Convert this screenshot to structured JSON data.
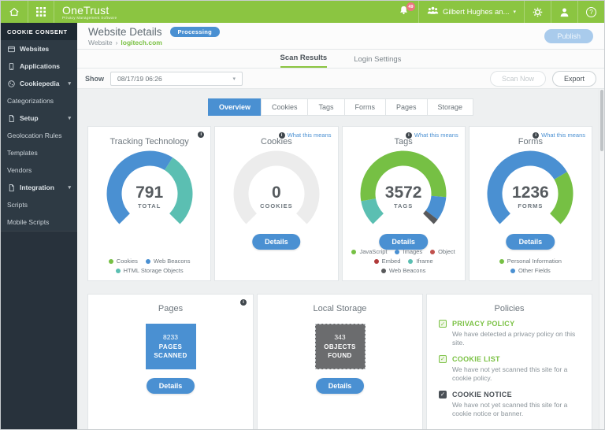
{
  "colors": {
    "brand_green": "#8bc541",
    "accent_blue": "#4a90d2",
    "teal": "#5bbfb2",
    "chart_green": "#76c044",
    "dark_gray": "#58595b",
    "empty_gray": "#ececec"
  },
  "topbar": {
    "brand": "OneTrust",
    "tagline": "Privacy Management Software",
    "notification_count": "49",
    "user_name": "Gilbert Hughes an..."
  },
  "sidebar": {
    "section_title": "COOKIE CONSENT",
    "items": [
      {
        "label": "Websites",
        "type": "parent"
      },
      {
        "label": "Applications",
        "type": "parent"
      },
      {
        "label": "Cookiepedia",
        "type": "parent",
        "expandable": true
      },
      {
        "label": "Categorizations",
        "type": "sub"
      },
      {
        "label": "Setup",
        "type": "parent",
        "expandable": true
      },
      {
        "label": "Geolocation Rules",
        "type": "sub"
      },
      {
        "label": "Templates",
        "type": "sub"
      },
      {
        "label": "Vendors",
        "type": "sub"
      },
      {
        "label": "Integration",
        "type": "parent",
        "expandable": true
      },
      {
        "label": "Scripts",
        "type": "sub"
      },
      {
        "label": "Mobile Scripts",
        "type": "sub"
      }
    ]
  },
  "header": {
    "title": "Website Details",
    "status_badge": "Processing",
    "breadcrumb_parent": "Website",
    "breadcrumb_current": "logitech.com",
    "publish_label": "Publish"
  },
  "tabs": {
    "scan_results": "Scan Results",
    "login_settings": "Login Settings"
  },
  "toolbar": {
    "show_label": "Show",
    "scan_date": "08/17/19 06:26",
    "scan_now_label": "Scan Now",
    "export_label": "Export"
  },
  "subtabs": {
    "items": [
      "Overview",
      "Cookies",
      "Tags",
      "Forms",
      "Pages",
      "Storage"
    ],
    "active": "Overview"
  },
  "cards": {
    "gauges": [
      {
        "title": "Tracking Technology",
        "value": "791",
        "unit": "TOTAL",
        "segments": [
          {
            "name": "Web Beacons",
            "color": "#4a90d2",
            "fraction": 0.62
          },
          {
            "name": "HTML Storage Objects",
            "color": "#5bbfb2",
            "fraction": 0.38
          }
        ],
        "legend": [
          {
            "label": "Cookies",
            "color": "#76c044"
          },
          {
            "label": "Web Beacons",
            "color": "#4a90d2"
          },
          {
            "label": "HTML Storage Objects",
            "color": "#5bbfb2"
          }
        ]
      },
      {
        "title": "Cookies",
        "info_link": "What this means",
        "value": "0",
        "unit": "COOKIES",
        "details_label": "Details",
        "segments": [
          {
            "name": "none",
            "color": "#ececec",
            "fraction": 1
          }
        ],
        "legend": []
      },
      {
        "title": "Tags",
        "info_link": "What this means",
        "value": "3572",
        "unit": "TAGS",
        "details_label": "Details",
        "segments": [
          {
            "name": "Iframe",
            "color": "#5bbfb2",
            "fraction": 0.13
          },
          {
            "name": "JavaScript",
            "color": "#76c044",
            "fraction": 0.72
          },
          {
            "name": "Images",
            "color": "#4a90d2",
            "fraction": 0.12
          },
          {
            "name": "Web Beacons",
            "color": "#58595b",
            "fraction": 0.03
          }
        ],
        "legend": [
          {
            "label": "JavaScript",
            "color": "#76c044"
          },
          {
            "label": "Images",
            "color": "#4a90d2"
          },
          {
            "label": "Object",
            "color": "#c0504d"
          },
          {
            "label": "Embed",
            "color": "#b03a3a"
          },
          {
            "label": "Iframe",
            "color": "#5bbfb2"
          },
          {
            "label": "Web Beacons",
            "color": "#58595b"
          }
        ]
      },
      {
        "title": "Forms",
        "info_link": "What this means",
        "value": "1236",
        "unit": "FORMS",
        "details_label": "Details",
        "segments": [
          {
            "name": "Other Fields",
            "color": "#4a90d2",
            "fraction": 0.72
          },
          {
            "name": "Personal Information",
            "color": "#76c044",
            "fraction": 0.28
          }
        ],
        "legend": [
          {
            "label": "Personal Information",
            "color": "#76c044"
          },
          {
            "label": "Other Fields",
            "color": "#4a90d2"
          }
        ]
      }
    ],
    "pages": {
      "title": "Pages",
      "line1": "8233",
      "line2": "PAGES",
      "line3": "SCANNED",
      "details_label": "Details",
      "box_color": "#4a90d2"
    },
    "local_storage": {
      "title": "Local Storage",
      "line1": "343",
      "line2": "OBJECTS",
      "line3": "FOUND",
      "details_label": "Details",
      "box_color": "#6b6c6e"
    },
    "policies": {
      "title": "Policies",
      "items": [
        {
          "label": "PRIVACY POLICY",
          "desc": "We have detected a privacy policy on this site.",
          "state": "green"
        },
        {
          "label": "COOKIE LIST",
          "desc": "We have not yet scanned this site for a cookie policy.",
          "state": "green"
        },
        {
          "label": "COOKIE NOTICE",
          "desc": "We have not yet scanned this site for a cookie notice or banner.",
          "state": "dark"
        }
      ]
    }
  }
}
